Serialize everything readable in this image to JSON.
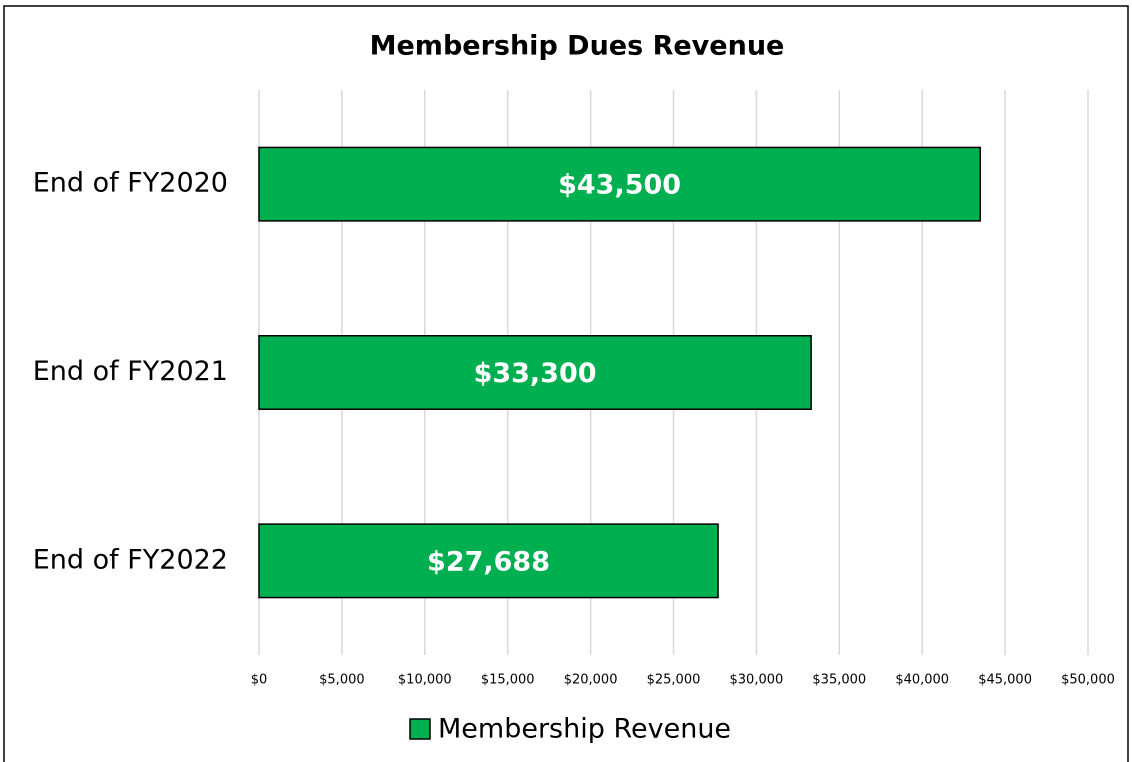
{
  "chart_data": {
    "type": "bar",
    "orientation": "horizontal",
    "title": "Membership Dues Revenue",
    "categories": [
      "End of FY2020",
      "End of FY2021",
      "End of FY2022"
    ],
    "series": [
      {
        "name": "Membership Revenue",
        "color": "#00b050",
        "values": [
          43500,
          33300,
          27688
        ],
        "value_labels": [
          "$43,500",
          "$33,300",
          "$27,688"
        ]
      }
    ],
    "xlim": [
      0,
      50000
    ],
    "xticks": [
      {
        "value": 0,
        "label": "$0"
      },
      {
        "value": 5000,
        "label": "$5,000"
      },
      {
        "value": 10000,
        "label": "$10,000"
      },
      {
        "value": 15000,
        "label": "$15,000"
      },
      {
        "value": 20000,
        "label": "$20,000"
      },
      {
        "value": 25000,
        "label": "$25,000"
      },
      {
        "value": 30000,
        "label": "$30,000"
      },
      {
        "value": 35000,
        "label": "$35,000"
      },
      {
        "value": 40000,
        "label": "$40,000"
      },
      {
        "value": 45000,
        "label": "$45,000"
      },
      {
        "value": 50000,
        "label": "$50,000"
      }
    ],
    "grid": true,
    "legend": "bottom"
  }
}
